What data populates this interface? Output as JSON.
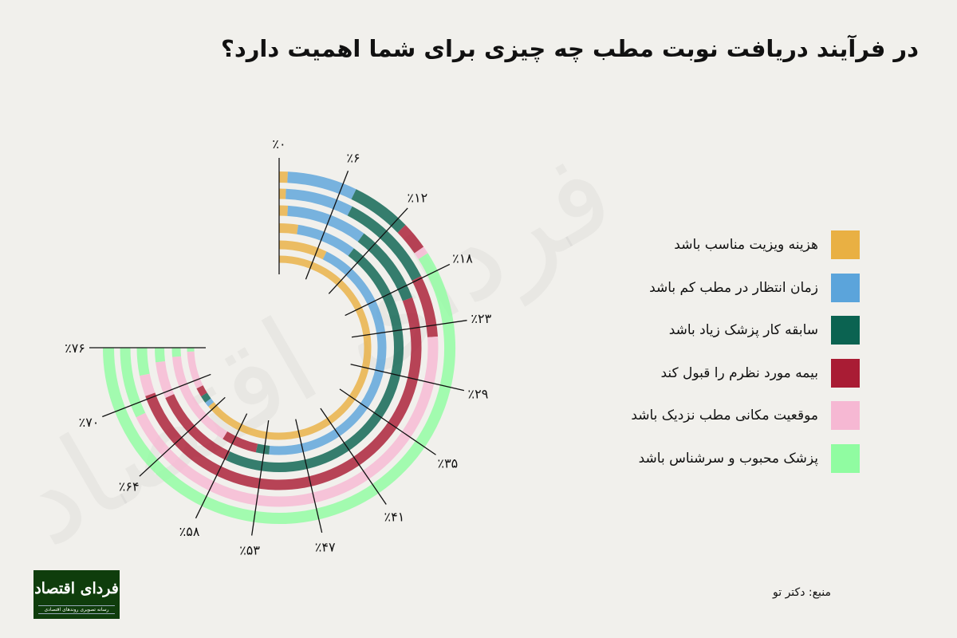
{
  "title": "در فرآیند دریافت نوبت مطب چه چیزی برای شما اهمیت دارد؟",
  "watermark": "فردای اقتصاد",
  "source": "منبع: دکتر تو",
  "logo": {
    "main": "فردای اقتصاد",
    "sub": "رسانه تصویری روندهای اقتصادی"
  },
  "background_color": "#F1F0EC",
  "chart_data": {
    "type": "radial-stacked-bar",
    "title": "در فرآیند دریافت نوبت مطب چه چیزی برای شما اهمیت دارد؟",
    "categories": [
      "هزینه ویزیت مناسب باشد",
      "زمان انتظار در مطب کم باشد",
      "سابقه کار پزشک زیاد باشد",
      "بیمه مورد نظرم را قبول کند",
      "موقعیت مکانی مطب نزدیک باشد",
      "پزشک محبوب و سرشناس باشد"
    ],
    "colors": [
      "#E9B043",
      "#5BA4DB",
      "#0B6351",
      "#A91C34",
      "#F6B8D3",
      "#90FCA1"
    ],
    "axis_max": 76,
    "ticks": [
      0,
      6,
      12,
      18,
      23,
      29,
      35,
      41,
      47,
      53,
      58,
      64,
      70,
      76
    ],
    "tick_labels": [
      "٪۰",
      "٪۶",
      "٪۱۲",
      "٪۱۸",
      "٪۲۳",
      "٪۲۹",
      "٪۳۵",
      "٪۴۱",
      "٪۴۷",
      "٪۵۳",
      "٪۵۸",
      "٪۶۴",
      "٪۷۰",
      "٪۷۶"
    ],
    "rings_outer_to_inner": [
      {
        "values": [
          0.8,
          6.5,
          5.6,
          2.6,
          0.7,
          59.8
        ]
      },
      {
        "values": [
          0.7,
          7.0,
          10.1,
          6.4,
          44.5,
          7.3
        ]
      },
      {
        "values": [
          1.0,
          9.3,
          9.2,
          50.9,
          2.4,
          3.2
        ]
      },
      {
        "values": [
          2.5,
          7.9,
          47.4,
          11.5,
          4.8,
          1.9
        ]
      },
      {
        "values": [
          7.4,
          44.8,
          2.0,
          5.4,
          15.0,
          1.4
        ]
      },
      {
        "values": [
          64.8,
          0.9,
          1.3,
          1.6,
          6.7,
          0.7
        ]
      }
    ],
    "legend_position": "right",
    "grid": false
  }
}
